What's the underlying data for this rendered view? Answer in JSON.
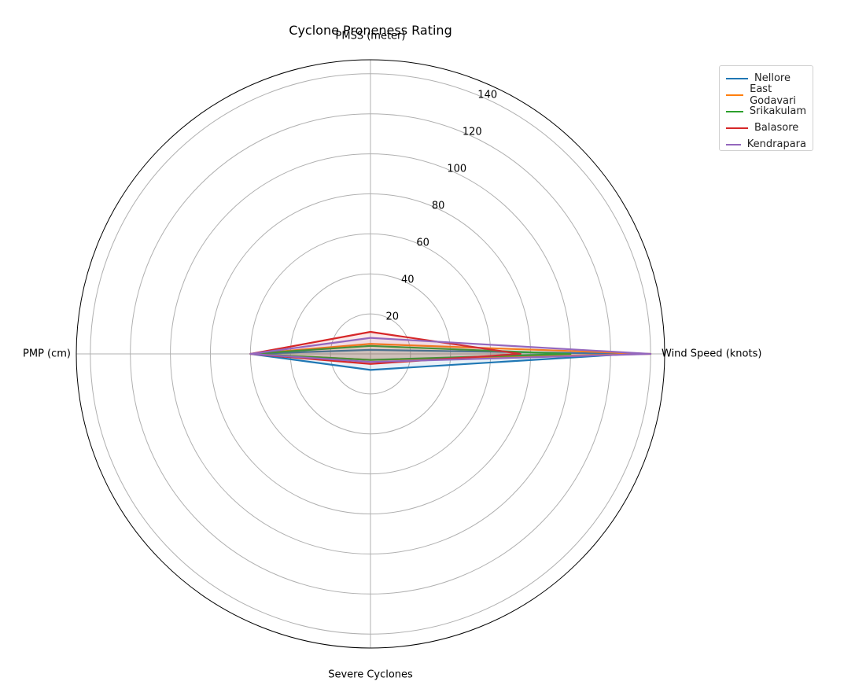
{
  "chart_data": {
    "type": "radar",
    "title": "Cyclone Proneness Rating",
    "axes": [
      "Wind Speed (knots)",
      "PMSS (meter)",
      "PMP (cm)",
      "Severe Cyclones"
    ],
    "r_ticks": [
      20,
      40,
      60,
      80,
      100,
      120,
      140
    ],
    "r_max": 147,
    "grid": true,
    "legend_position": "top-right",
    "series": [
      {
        "name": "Nellore",
        "color": "#1f77b4",
        "values": [
          130,
          2,
          60,
          8
        ]
      },
      {
        "name": "East Godavari",
        "color": "#ff7f0e",
        "values": [
          140,
          5,
          60,
          3
        ]
      },
      {
        "name": "Srikakulam",
        "color": "#2ca02c",
        "values": [
          100,
          4,
          60,
          3
        ]
      },
      {
        "name": "Balasore",
        "color": "#d62728",
        "values": [
          75,
          11,
          60,
          5
        ]
      },
      {
        "name": "Kendrapara",
        "color": "#9467bd",
        "values": [
          140,
          8,
          60,
          4
        ]
      }
    ]
  }
}
